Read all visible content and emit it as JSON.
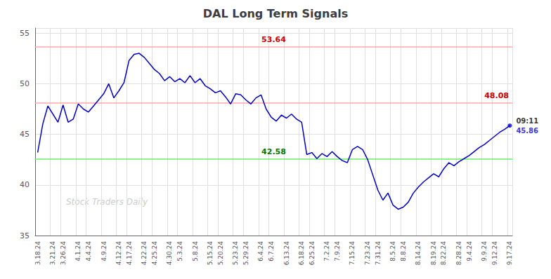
{
  "chart_data": {
    "type": "line",
    "title": "DAL Long Term Signals",
    "categories": [
      "3.18.24",
      null,
      null,
      "3.21.24",
      null,
      "3.26.24",
      null,
      null,
      "4.1.24",
      null,
      "4.4.24",
      null,
      null,
      "4.9.24",
      null,
      null,
      "4.12.24",
      null,
      "4.17.24",
      null,
      null,
      "4.22.24",
      null,
      "4.25.24",
      null,
      null,
      "4.30.24",
      null,
      "5.3.24",
      null,
      null,
      "5.8.24",
      null,
      null,
      "5.15.24",
      null,
      "5.20.24",
      null,
      null,
      "5.23.24",
      null,
      "5.29.24",
      null,
      null,
      "6.4.24",
      null,
      "6.7.24",
      null,
      null,
      "6.13.24",
      null,
      null,
      "6.18.24",
      null,
      "6.25.24",
      null,
      null,
      "7.2.24",
      null,
      "7.9.24",
      null,
      null,
      "7.15.24",
      null,
      null,
      "7.23.24",
      null,
      "7.31.24",
      null,
      null,
      "8.5.24",
      null,
      "8.8.24",
      null,
      null,
      "8.14.24",
      null,
      null,
      "8.19.24",
      null,
      "8.22.24",
      null,
      null,
      "8.28.24",
      null,
      "9.4.24",
      null,
      null,
      "9.9.24",
      null,
      "9.12.24",
      null,
      null,
      "9.17.24"
    ],
    "values": [
      43.2,
      46.0,
      47.8,
      47.0,
      46.2,
      47.9,
      46.2,
      46.5,
      48.0,
      47.5,
      47.2,
      47.8,
      48.4,
      49.0,
      50.0,
      48.6,
      49.3,
      50.1,
      52.3,
      52.9,
      53.0,
      52.6,
      52.0,
      51.4,
      51.0,
      50.3,
      50.7,
      50.2,
      50.5,
      50.1,
      50.8,
      50.1,
      50.5,
      49.8,
      49.5,
      49.1,
      49.3,
      48.7,
      48.0,
      49.0,
      48.9,
      48.4,
      48.0,
      48.6,
      48.9,
      47.5,
      46.7,
      46.3,
      46.9,
      46.6,
      47.0,
      46.5,
      46.2,
      43.0,
      43.2,
      42.6,
      43.1,
      42.8,
      43.3,
      42.8,
      42.4,
      42.2,
      43.5,
      43.8,
      43.5,
      42.5,
      41.0,
      39.5,
      38.5,
      39.2,
      38.0,
      37.6,
      37.8,
      38.3,
      39.2,
      39.8,
      40.3,
      40.7,
      41.1,
      40.8,
      41.6,
      42.2,
      41.9,
      42.3,
      42.6,
      42.9,
      43.3,
      43.7,
      44.0,
      44.4,
      44.8,
      45.2,
      45.5,
      45.86
    ],
    "color": "#0000cc",
    "ylim": [
      35,
      55.5
    ],
    "yticks": [
      35,
      40,
      45,
      50,
      55
    ],
    "grid": true,
    "reference_lines": [
      {
        "value": 53.64,
        "color": "#ffaaaa",
        "label_color": "#cc0000"
      },
      {
        "value": 48.08,
        "color": "#ffaaaa",
        "label_color": "#cc0000"
      },
      {
        "value": 42.58,
        "color": "#66ee66",
        "label_color": "#007700"
      }
    ],
    "last_point": {
      "time": "09:11",
      "time_color": "#000000",
      "price_color": "#0000cc"
    },
    "watermark": "Stock Traders Daily",
    "watermark_color": "#cccccc"
  }
}
